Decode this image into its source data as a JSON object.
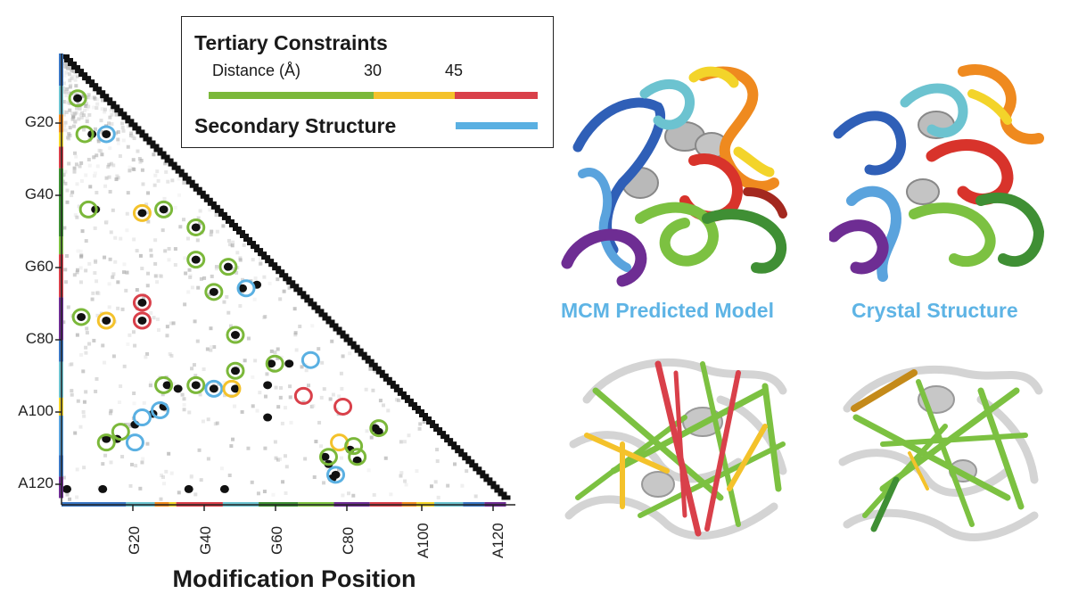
{
  "legend": {
    "title": "Tertiary Constraints",
    "distance_label": "Distance (Å)",
    "tick_30": "30",
    "tick_45": "45",
    "secondary_label": "Secondary Structure"
  },
  "colors": {
    "short": "#7bb83a",
    "medium": "#f4c22b",
    "long": "#d9404a",
    "secondary": "#5ab0e2",
    "matrix": "#111111"
  },
  "matrix": {
    "x_axis_title": "Modification Position",
    "y_tick_labels": [
      "G20",
      "G40",
      "G60",
      "C80",
      "A100",
      "A120"
    ],
    "x_tick_labels": [
      "G20",
      "G40",
      "G60",
      "C80",
      "A100",
      "A120"
    ]
  },
  "captions": {
    "predicted": "MCM Predicted Model",
    "crystal": "Crystal Structure"
  },
  "panels": {
    "top_left": "predicted-ribbon-structure",
    "top_right": "crystal-ribbon-structure",
    "bottom_left": "predicted-constraint-structure",
    "bottom_right": "crystal-constraint-structure"
  }
}
